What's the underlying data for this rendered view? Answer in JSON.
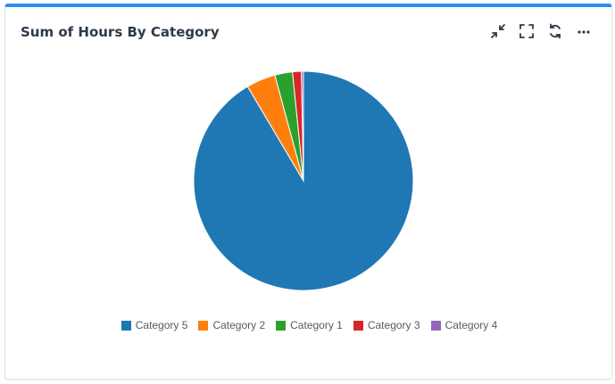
{
  "card": {
    "title": "Sum of Hours By Category",
    "accent_color": "#2d8ef0"
  },
  "toolbar": {
    "icons": [
      "collapse-icon",
      "fullscreen-icon",
      "refresh-icon",
      "more-icon"
    ]
  },
  "chart_data": {
    "type": "pie",
    "title": "Sum of Hours By Category",
    "slices": [
      {
        "label": "Category 5",
        "value": 91.5,
        "color": "#1f77b4"
      },
      {
        "label": "Category 2",
        "value": 4.3,
        "color": "#ff7f0e"
      },
      {
        "label": "Category 1",
        "value": 2.6,
        "color": "#2ca02c"
      },
      {
        "label": "Category 3",
        "value": 1.3,
        "color": "#d62728"
      },
      {
        "label": "Category 4",
        "value": 0.3,
        "color": "#9467bd"
      }
    ],
    "legend_position": "bottom"
  }
}
